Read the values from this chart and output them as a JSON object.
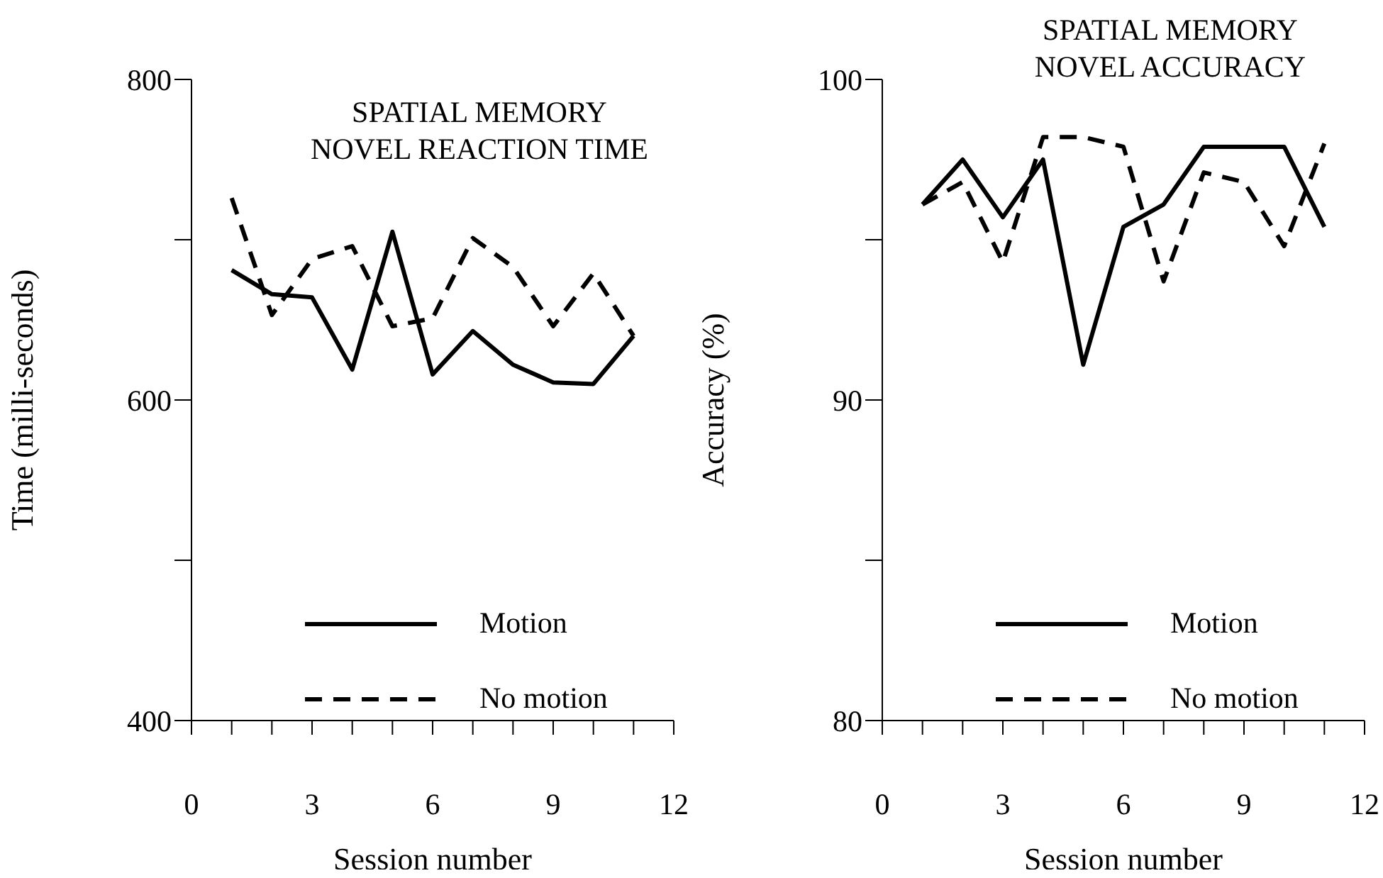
{
  "chart_data": [
    {
      "type": "line",
      "title": "SPATIAL MEMORY\nNOVEL REACTION TIME",
      "xlabel": "Session number",
      "ylabel": "Time (milli-seconds)",
      "x": [
        1,
        2,
        3,
        4,
        5,
        6,
        7,
        8,
        9,
        10,
        11
      ],
      "series": [
        {
          "name": "Motion",
          "color": "#000000",
          "line_style": "solid",
          "values": [
            681,
            666,
            664,
            619,
            705,
            616,
            643,
            622,
            611,
            610,
            640
          ]
        },
        {
          "name": "No motion",
          "color": "#000000",
          "line_style": "dashed",
          "values": [
            726,
            653,
            688,
            696,
            646,
            651,
            701,
            683,
            646,
            679,
            640
          ]
        }
      ],
      "xlim": [
        0,
        12
      ],
      "xticks": [
        0,
        {
          "value": 1,
          "label": null
        },
        {
          "value": 2,
          "label": null
        },
        3,
        {
          "value": 4,
          "label": null
        },
        {
          "value": 5,
          "label": null
        },
        6,
        {
          "value": 7,
          "label": null
        },
        {
          "value": 8,
          "label": null
        },
        9,
        {
          "value": 10,
          "label": null
        },
        {
          "value": 11,
          "label": null
        },
        12
      ],
      "ylim": [
        400,
        800
      ],
      "yticks": [
        400,
        {
          "value": 500,
          "label": null
        },
        600,
        {
          "value": 700,
          "label": null
        },
        800
      ],
      "legend": "bottom right"
    },
    {
      "type": "line",
      "title": "SPATIAL MEMORY\nNOVEL ACCURACY",
      "xlabel": "Session number",
      "ylabel": "Accuracy (%)",
      "x": [
        1,
        2,
        3,
        4,
        5,
        6,
        7,
        8,
        9,
        10,
        11
      ],
      "series": [
        {
          "name": "Motion",
          "color": "#000000",
          "line_style": "solid",
          "values": [
            96.1,
            97.5,
            95.7,
            97.5,
            91.1,
            95.4,
            96.1,
            97.9,
            97.9,
            97.9,
            95.4
          ]
        },
        {
          "name": "No motion",
          "color": "#000000",
          "line_style": "dashed",
          "values": [
            96.1,
            96.8,
            94.3,
            98.2,
            98.2,
            97.9,
            93.7,
            97.1,
            96.8,
            94.8,
            98.0
          ]
        }
      ],
      "xlim": [
        0,
        12
      ],
      "xticks": [
        0,
        {
          "value": 1,
          "label": null
        },
        {
          "value": 2,
          "label": null
        },
        3,
        {
          "value": 4,
          "label": null
        },
        {
          "value": 5,
          "label": null
        },
        6,
        {
          "value": 7,
          "label": null
        },
        {
          "value": 8,
          "label": null
        },
        9,
        {
          "value": 10,
          "label": null
        },
        {
          "value": 11,
          "label": null
        },
        12
      ],
      "ylim": [
        80,
        100
      ],
      "yticks": [
        80,
        {
          "value": 85,
          "label": null
        },
        90,
        {
          "value": 95,
          "label": null
        },
        100
      ],
      "legend": "bottom right"
    }
  ]
}
